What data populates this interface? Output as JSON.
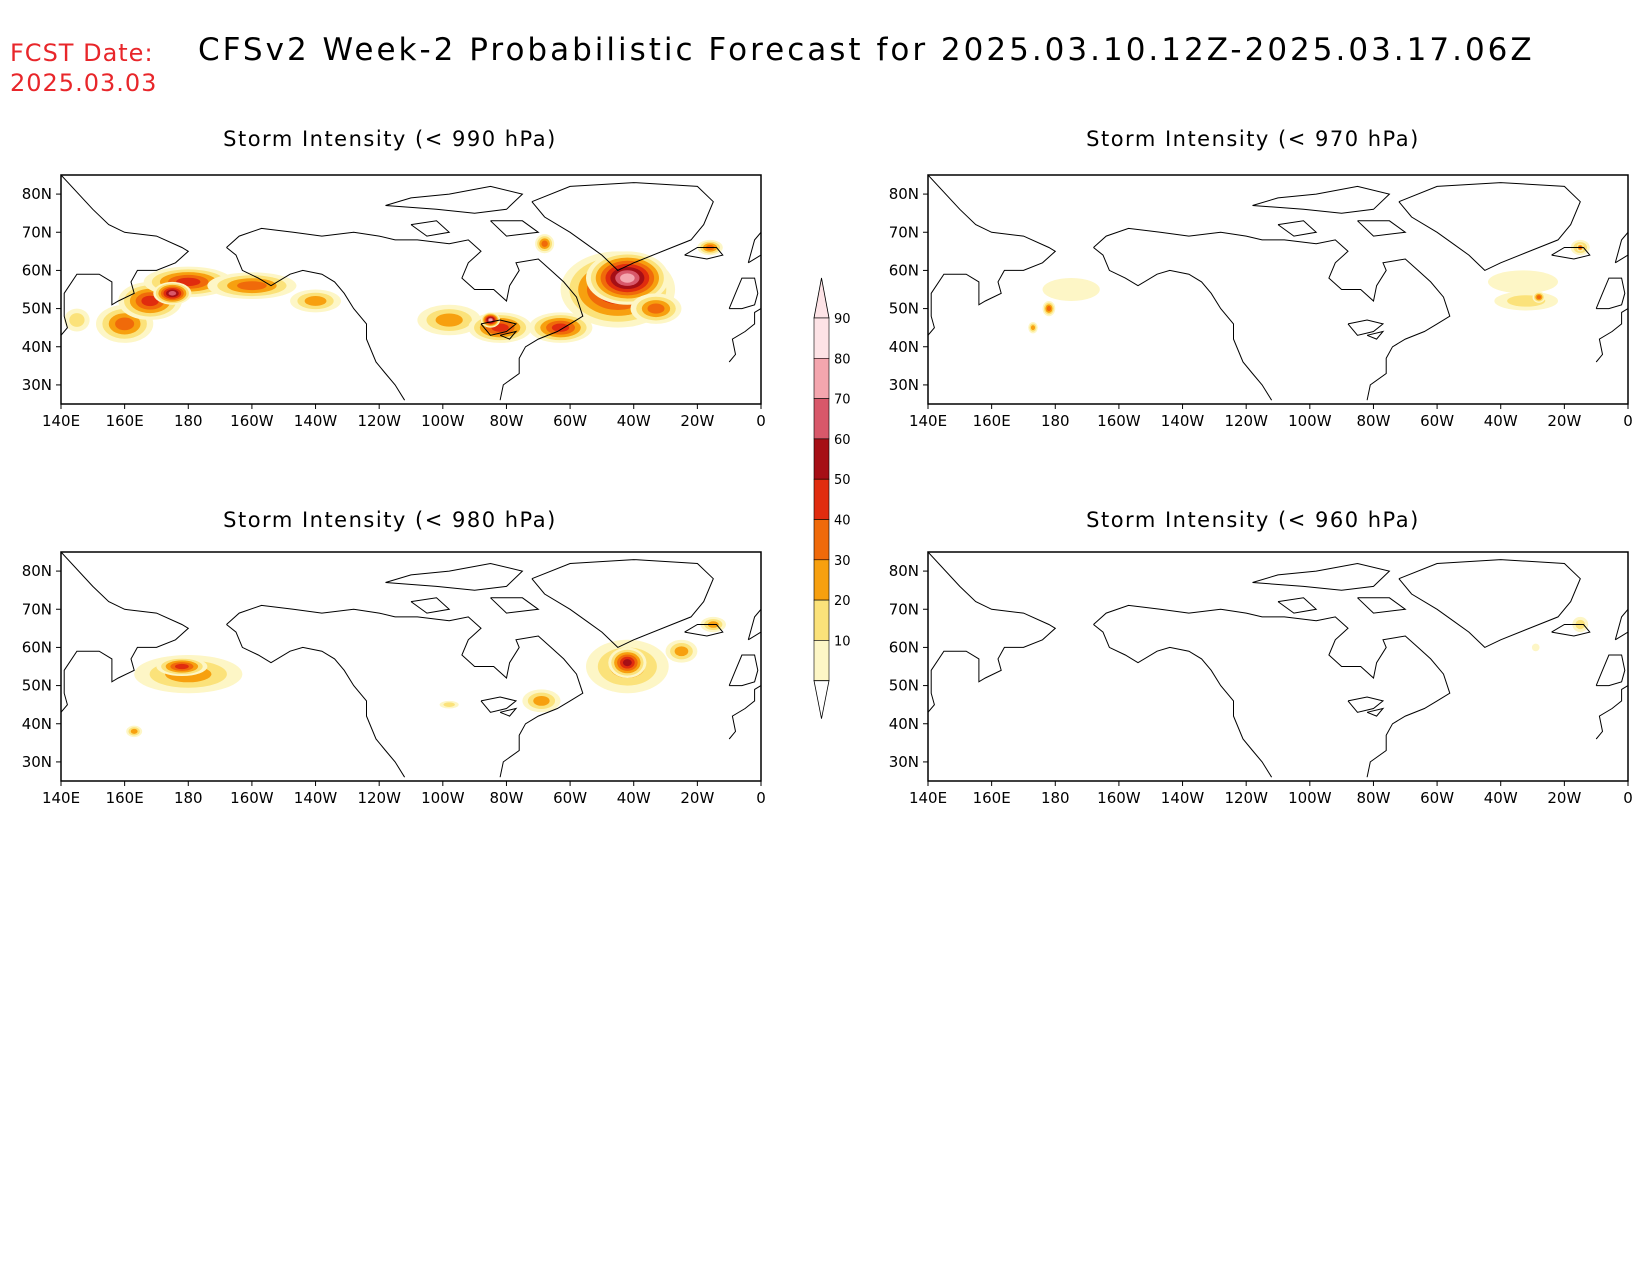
{
  "header": {
    "fcst_label": "FCST Date:",
    "fcst_date": "2025.03.03",
    "title": "CFSv2 Week-2 Probabilistic Forecast for 2025.03.10.12Z-2025.03.17.06Z"
  },
  "axes": {
    "lon_labels": [
      "140E",
      "160E",
      "180",
      "160W",
      "140W",
      "120W",
      "100W",
      "80W",
      "60W",
      "40W",
      "20W",
      "0"
    ],
    "lat_labels": [
      "80N",
      "70N",
      "60N",
      "50N",
      "40N",
      "30N"
    ]
  },
  "panels": [
    {
      "id": "990",
      "title": "Storm Intensity (< 990 hPa)"
    },
    {
      "id": "970",
      "title": "Storm Intensity (< 970 hPa)"
    },
    {
      "id": "980",
      "title": "Storm Intensity (< 980 hPa)"
    },
    {
      "id": "960",
      "title": "Storm Intensity (< 960 hPa)"
    }
  ],
  "colorbar": {
    "labels": [
      "90",
      "80",
      "70",
      "60",
      "50",
      "40",
      "30",
      "20",
      "10"
    ],
    "colors": [
      "#fde3e6",
      "#f4a6ae",
      "#d8586a",
      "#a60f16",
      "#e02c0e",
      "#f06a0a",
      "#f7a00f",
      "#fbe27a",
      "#fdf6c6"
    ]
  },
  "fields": [
    [
      {
        "lon": 145,
        "lat": 47,
        "rx": 4,
        "ry": 3,
        "level": 2
      },
      {
        "lon": 160,
        "lat": 46,
        "rx": 9,
        "ry": 5,
        "level": 4
      },
      {
        "lon": 168,
        "lat": 52,
        "rx": 10,
        "ry": 5,
        "level": 5
      },
      {
        "lon": 180,
        "lat": 57,
        "rx": 14,
        "ry": 4,
        "level": 5
      },
      {
        "lon": 175,
        "lat": 54,
        "rx": 6,
        "ry": 3,
        "level": 7
      },
      {
        "lon": 200,
        "lat": 56,
        "rx": 14,
        "ry": 3.5,
        "level": 4
      },
      {
        "lon": 220,
        "lat": 52,
        "rx": 8,
        "ry": 3,
        "level": 3
      },
      {
        "lon": 262,
        "lat": 47,
        "rx": 10,
        "ry": 4,
        "level": 3
      },
      {
        "lon": 278,
        "lat": 45,
        "rx": 10,
        "ry": 4,
        "level": 5
      },
      {
        "lon": 275,
        "lat": 47,
        "rx": 3,
        "ry": 2,
        "level": 8
      },
      {
        "lon": 297,
        "lat": 45,
        "rx": 10,
        "ry": 4,
        "level": 5
      },
      {
        "lon": 315,
        "lat": 55,
        "rx": 18,
        "ry": 10,
        "level": 6
      },
      {
        "lon": 318,
        "lat": 58,
        "rx": 13,
        "ry": 7,
        "level": 8
      },
      {
        "lon": 327,
        "lat": 50,
        "rx": 8,
        "ry": 4,
        "level": 4
      },
      {
        "lon": 344,
        "lat": 66,
        "rx": 4,
        "ry": 2,
        "level": 4
      },
      {
        "lon": 292,
        "lat": 67,
        "rx": 3,
        "ry": 2.5,
        "level": 4
      }
    ],
    [
      {
        "lon": 185,
        "lat": 55,
        "rx": 9,
        "ry": 3,
        "level": 1
      },
      {
        "lon": 173,
        "lat": 45,
        "rx": 1.5,
        "ry": 1.5,
        "level": 3
      },
      {
        "lon": 178,
        "lat": 50,
        "rx": 2,
        "ry": 2,
        "level": 4
      },
      {
        "lon": 327,
        "lat": 57,
        "rx": 11,
        "ry": 3,
        "level": 1
      },
      {
        "lon": 328,
        "lat": 52,
        "rx": 10,
        "ry": 2.5,
        "level": 2
      },
      {
        "lon": 332,
        "lat": 53,
        "rx": 2,
        "ry": 1.5,
        "level": 4
      },
      {
        "lon": 345,
        "lat": 66,
        "rx": 3,
        "ry": 2,
        "level": 3
      },
      {
        "lon": 345,
        "lat": 66,
        "rx": 1.2,
        "ry": 1,
        "level": 5
      }
    ],
    [
      {
        "lon": 180,
        "lat": 53,
        "rx": 17,
        "ry": 5,
        "level": 3
      },
      {
        "lon": 178,
        "lat": 55,
        "rx": 8,
        "ry": 2.5,
        "level": 5
      },
      {
        "lon": 163,
        "lat": 38,
        "rx": 2.5,
        "ry": 1.5,
        "level": 3
      },
      {
        "lon": 262,
        "lat": 45,
        "rx": 3,
        "ry": 1,
        "level": 2
      },
      {
        "lon": 291,
        "lat": 46,
        "rx": 6,
        "ry": 3,
        "level": 3
      },
      {
        "lon": 318,
        "lat": 55,
        "rx": 13,
        "ry": 7,
        "level": 3
      },
      {
        "lon": 318,
        "lat": 56,
        "rx": 6,
        "ry": 4,
        "level": 6
      },
      {
        "lon": 335,
        "lat": 59,
        "rx": 5,
        "ry": 3,
        "level": 3
      },
      {
        "lon": 345,
        "lat": 66,
        "rx": 4,
        "ry": 2,
        "level": 3
      }
    ],
    [
      {
        "lon": 345,
        "lat": 66,
        "rx": 2.5,
        "ry": 2,
        "level": 2
      },
      {
        "lon": 331,
        "lat": 60,
        "rx": 1.2,
        "ry": 1,
        "level": 1
      }
    ]
  ]
}
